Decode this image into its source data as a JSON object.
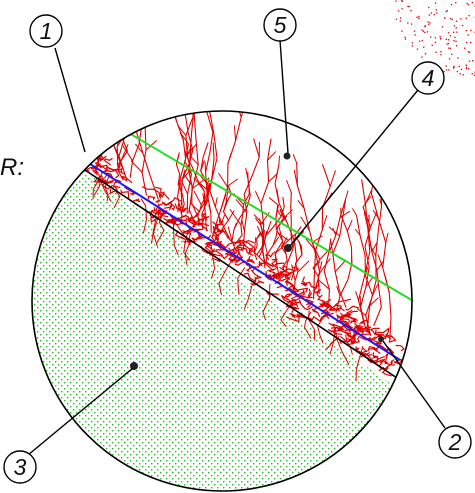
{
  "figure": {
    "side_label": "R:",
    "callouts": [
      {
        "id": "callout-1",
        "text": "1"
      },
      {
        "id": "callout-2",
        "text": "2"
      },
      {
        "id": "callout-3",
        "text": "3"
      },
      {
        "id": "callout-4",
        "text": "4"
      },
      {
        "id": "callout-5",
        "text": "5"
      }
    ]
  },
  "colors": {
    "outline": "#000000",
    "soil_dots": "#22bb22",
    "roots": "#e00000",
    "blue_line": "#1a1aff",
    "green_line": "#22dd22",
    "marker": "#222222"
  }
}
